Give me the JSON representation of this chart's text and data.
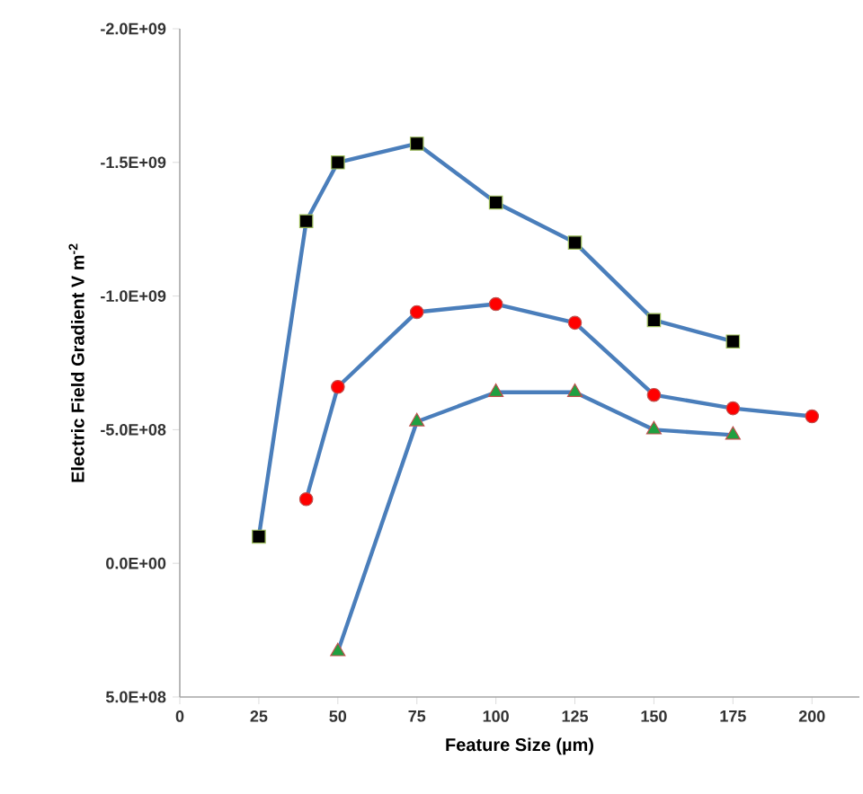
{
  "chart_data": {
    "type": "line",
    "xlabel": "Feature Size (µm)",
    "ylabel": "Electric Field Gradient V m$^{-2}$",
    "xlim": [
      0,
      215
    ],
    "xticks": [
      0,
      25,
      50,
      75,
      100,
      125,
      150,
      175,
      200
    ],
    "ylim": [
      500000000.0,
      -2000000000.0
    ],
    "yticks": [
      {
        "value": -2000000000.0,
        "label": "-2.0E+09"
      },
      {
        "value": -1500000000.0,
        "label": "-1.5E+09"
      },
      {
        "value": -1000000000.0,
        "label": "-1.0E+09"
      },
      {
        "value": -500000000.0,
        "label": "-5.0E+08"
      },
      {
        "value": 0,
        "label": "0.0E+00"
      },
      {
        "value": 500000000.0,
        "label": "5.0E+08"
      }
    ],
    "line_style": "solid",
    "series": [
      {
        "color": "#4a7ebb",
        "marker": "square",
        "colors": [
          "#000000",
          "#000000",
          "#000000",
          "#000000",
          "#000000",
          "#000000",
          "#000000",
          "#000000"
        ],
        "x": [
          25,
          40,
          50,
          75,
          100,
          125,
          150,
          175
        ],
        "values": [
          -100000000.0,
          -1280000000.0,
          -1500000000.0,
          -1570000000.0,
          -1350000000.0,
          -1200000000.0,
          -910000000.0,
          -830000000.0
        ]
      },
      {
        "color": "#4a7ebb",
        "marker": "circle",
        "colors": [
          "#ff0000",
          "#ff0000",
          "#ff0000",
          "#ff0000",
          "#ff0000",
          "#ff0000",
          "#ff0000",
          "#ff0000"
        ],
        "x": [
          40,
          50,
          75,
          100,
          125,
          150,
          175,
          200
        ],
        "values": [
          -240000000.0,
          -660000000.0,
          -940000000.0,
          -970000000.0,
          -900000000.0,
          -630000000.0,
          -580000000.0,
          -550000000.0
        ]
      },
      {
        "color": "#4a7ebb",
        "marker": "triangle",
        "colors": [
          "#1fa040",
          "#1fa040",
          "#1fa040",
          "#1fa040",
          "#1fa040",
          "#1fa040"
        ],
        "x": [
          50,
          75,
          100,
          125,
          150,
          175
        ],
        "values": [
          330000000.0,
          -530000000.0,
          -640000000.0,
          -640000000.0,
          -500000000.0,
          -480000000.0
        ]
      }
    ]
  }
}
